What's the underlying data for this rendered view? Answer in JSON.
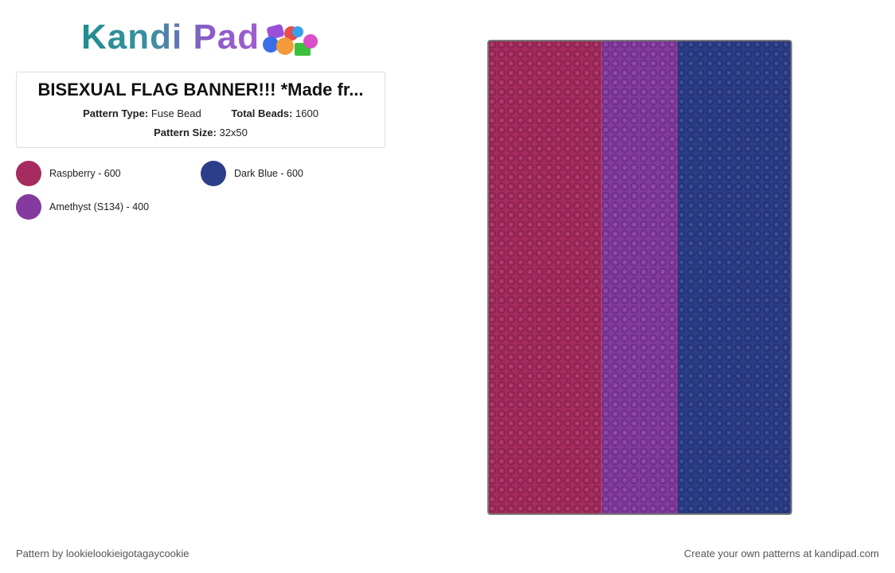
{
  "header": {
    "logo": "Kandi Pad"
  },
  "pattern": {
    "title": "BISEXUAL FLAG BANNER!!! *Made fr...",
    "pattern_type": {
      "label": "Pattern Type:",
      "value": "Fuse Bead"
    },
    "total_beads": {
      "label": "Total Beads:",
      "value": "1600"
    },
    "pattern_size": {
      "label": "Pattern Size:",
      "value": "32x50"
    }
  },
  "legend": [
    {
      "label": "Raspberry - 600",
      "color": "#a62b5e"
    },
    {
      "label": "Dark Blue - 600",
      "color": "#2c3e8a"
    },
    {
      "label": "Amethyst (S134) - 400",
      "color": "#843a9f"
    }
  ],
  "footer": {
    "author": "Pattern by lookielookieigotagaycookie",
    "promo": "Create your own patterns at kandipad.com"
  }
}
